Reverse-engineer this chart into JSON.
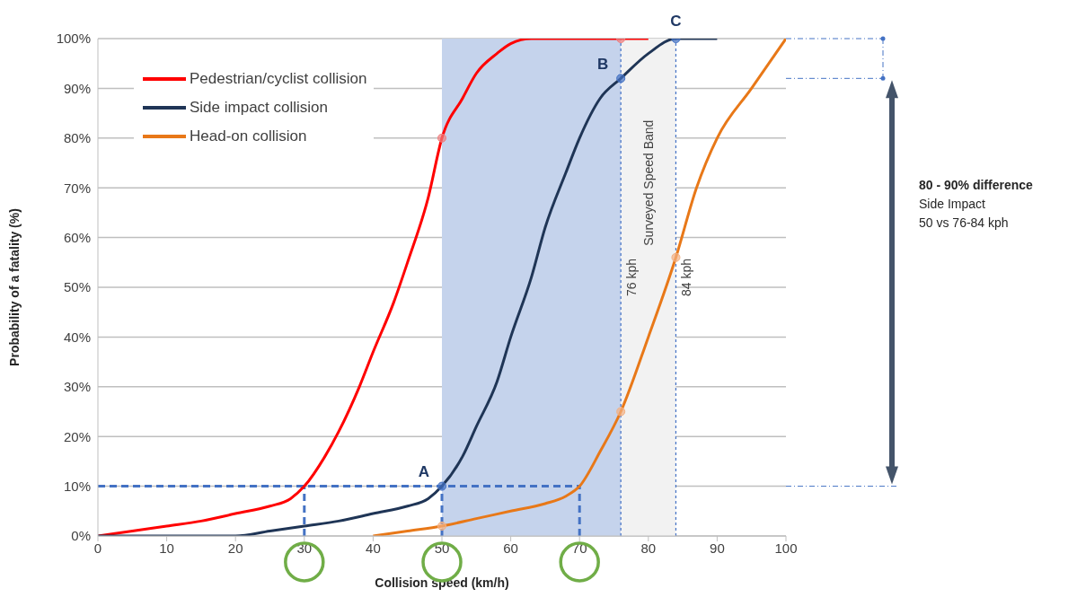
{
  "chart_data": {
    "type": "line",
    "xlabel": "Collision speed (km/h)",
    "ylabel": "Probability of a fatality (%)",
    "xlim": [
      0,
      100
    ],
    "xticks": [
      0,
      10,
      20,
      30,
      40,
      50,
      60,
      70,
      80,
      90,
      100
    ],
    "ylim": [
      0,
      100
    ],
    "yticks": [
      {
        "value": 0,
        "label": "0%"
      },
      {
        "value": 10,
        "label": "10%"
      },
      {
        "value": 20,
        "label": "20%"
      },
      {
        "value": 30,
        "label": "30%"
      },
      {
        "value": 40,
        "label": "40%"
      },
      {
        "value": 50,
        "label": "50%"
      },
      {
        "value": 60,
        "label": "60%"
      },
      {
        "value": 70,
        "label": "70%"
      },
      {
        "value": 80,
        "label": "80%"
      },
      {
        "value": 90,
        "label": "90%"
      },
      {
        "value": 100,
        "label": "100%"
      }
    ],
    "grid": "y",
    "legend": "top left",
    "marker": "none",
    "series": [
      {
        "name": "Pedestrian/cyclist collision",
        "color": "#ff0000",
        "x": [
          0,
          5,
          10,
          15,
          20,
          25,
          28,
          30,
          33,
          35,
          38,
          40,
          43,
          45,
          48,
          50,
          53,
          55,
          58,
          60,
          63,
          65,
          70,
          75,
          80
        ],
        "values": [
          0,
          1,
          2,
          3,
          4.5,
          6,
          7.5,
          10,
          16,
          21,
          30,
          37,
          47,
          55,
          68,
          80,
          88,
          93,
          97,
          99,
          100,
          100,
          100,
          100,
          100
        ]
      },
      {
        "name": "Side impact collision",
        "color": "#1f3556",
        "x": [
          0,
          10,
          20,
          25,
          30,
          35,
          40,
          45,
          48,
          50,
          53,
          55,
          58,
          60,
          63,
          65,
          68,
          70,
          73,
          76,
          80,
          84,
          90
        ],
        "values": [
          0,
          0,
          0,
          1,
          2,
          3,
          4.5,
          6,
          7.5,
          10,
          16,
          22,
          31,
          40,
          52,
          62,
          73,
          80,
          88,
          92,
          97,
          100,
          100
        ]
      },
      {
        "name": "Head-on collision",
        "color": "#e87818",
        "x": [
          40,
          45,
          50,
          55,
          60,
          65,
          68,
          70,
          73,
          76,
          80,
          84,
          87,
          90,
          95,
          100
        ],
        "values": [
          0,
          1,
          2,
          3.5,
          5,
          6.5,
          8,
          10,
          17,
          25,
          40,
          56,
          70,
          80,
          90,
          100
        ]
      },
      {
        "type": "scatter",
        "marker": "circle",
        "color": "#f08080",
        "x": [
          50,
          76
        ],
        "values": [
          80,
          100
        ]
      },
      {
        "type": "scatter",
        "marker": "circle",
        "color": "#4472c4",
        "x": [
          50,
          76,
          84
        ],
        "values": [
          10,
          92,
          100
        ]
      },
      {
        "type": "scatter",
        "marker": "circle",
        "color": "#f4b183",
        "x": [
          50,
          76,
          84
        ],
        "values": [
          2,
          25,
          56
        ]
      }
    ],
    "bands": [
      {
        "axis": "x",
        "from": 50,
        "to": 76,
        "color": "#c5d3ec"
      },
      {
        "axis": "x",
        "from": 76,
        "to": 84,
        "label": "Surveyed Speed Band",
        "color": "#f2f2f2"
      }
    ],
    "ref_lines": [
      {
        "axis": "y",
        "value": 10,
        "color": "#4472c4",
        "line_style": "dashed"
      },
      {
        "axis": "x",
        "value": 30,
        "color": "#4472c4",
        "line_style": "dashed"
      },
      {
        "axis": "x",
        "value": 50,
        "color": "#4472c4",
        "line_style": "dashed"
      },
      {
        "axis": "x",
        "value": 70,
        "color": "#4472c4",
        "line_style": "dashed"
      },
      {
        "axis": "x",
        "value": 76,
        "label": "76 kph",
        "color": "#4472c4",
        "line_style": "dotted"
      },
      {
        "axis": "x",
        "value": 84,
        "label": "84 kph",
        "color": "#4472c4",
        "line_style": "dotted"
      }
    ],
    "annotations": [
      {
        "text": "A",
        "x": 50,
        "y": 10
      },
      {
        "text": "B",
        "x": 76,
        "y": 92
      },
      {
        "text": "C",
        "x": 84,
        "y": 100
      },
      "80 - 90% difference",
      "Side Impact",
      "50 vs 76-84 kph"
    ]
  }
}
